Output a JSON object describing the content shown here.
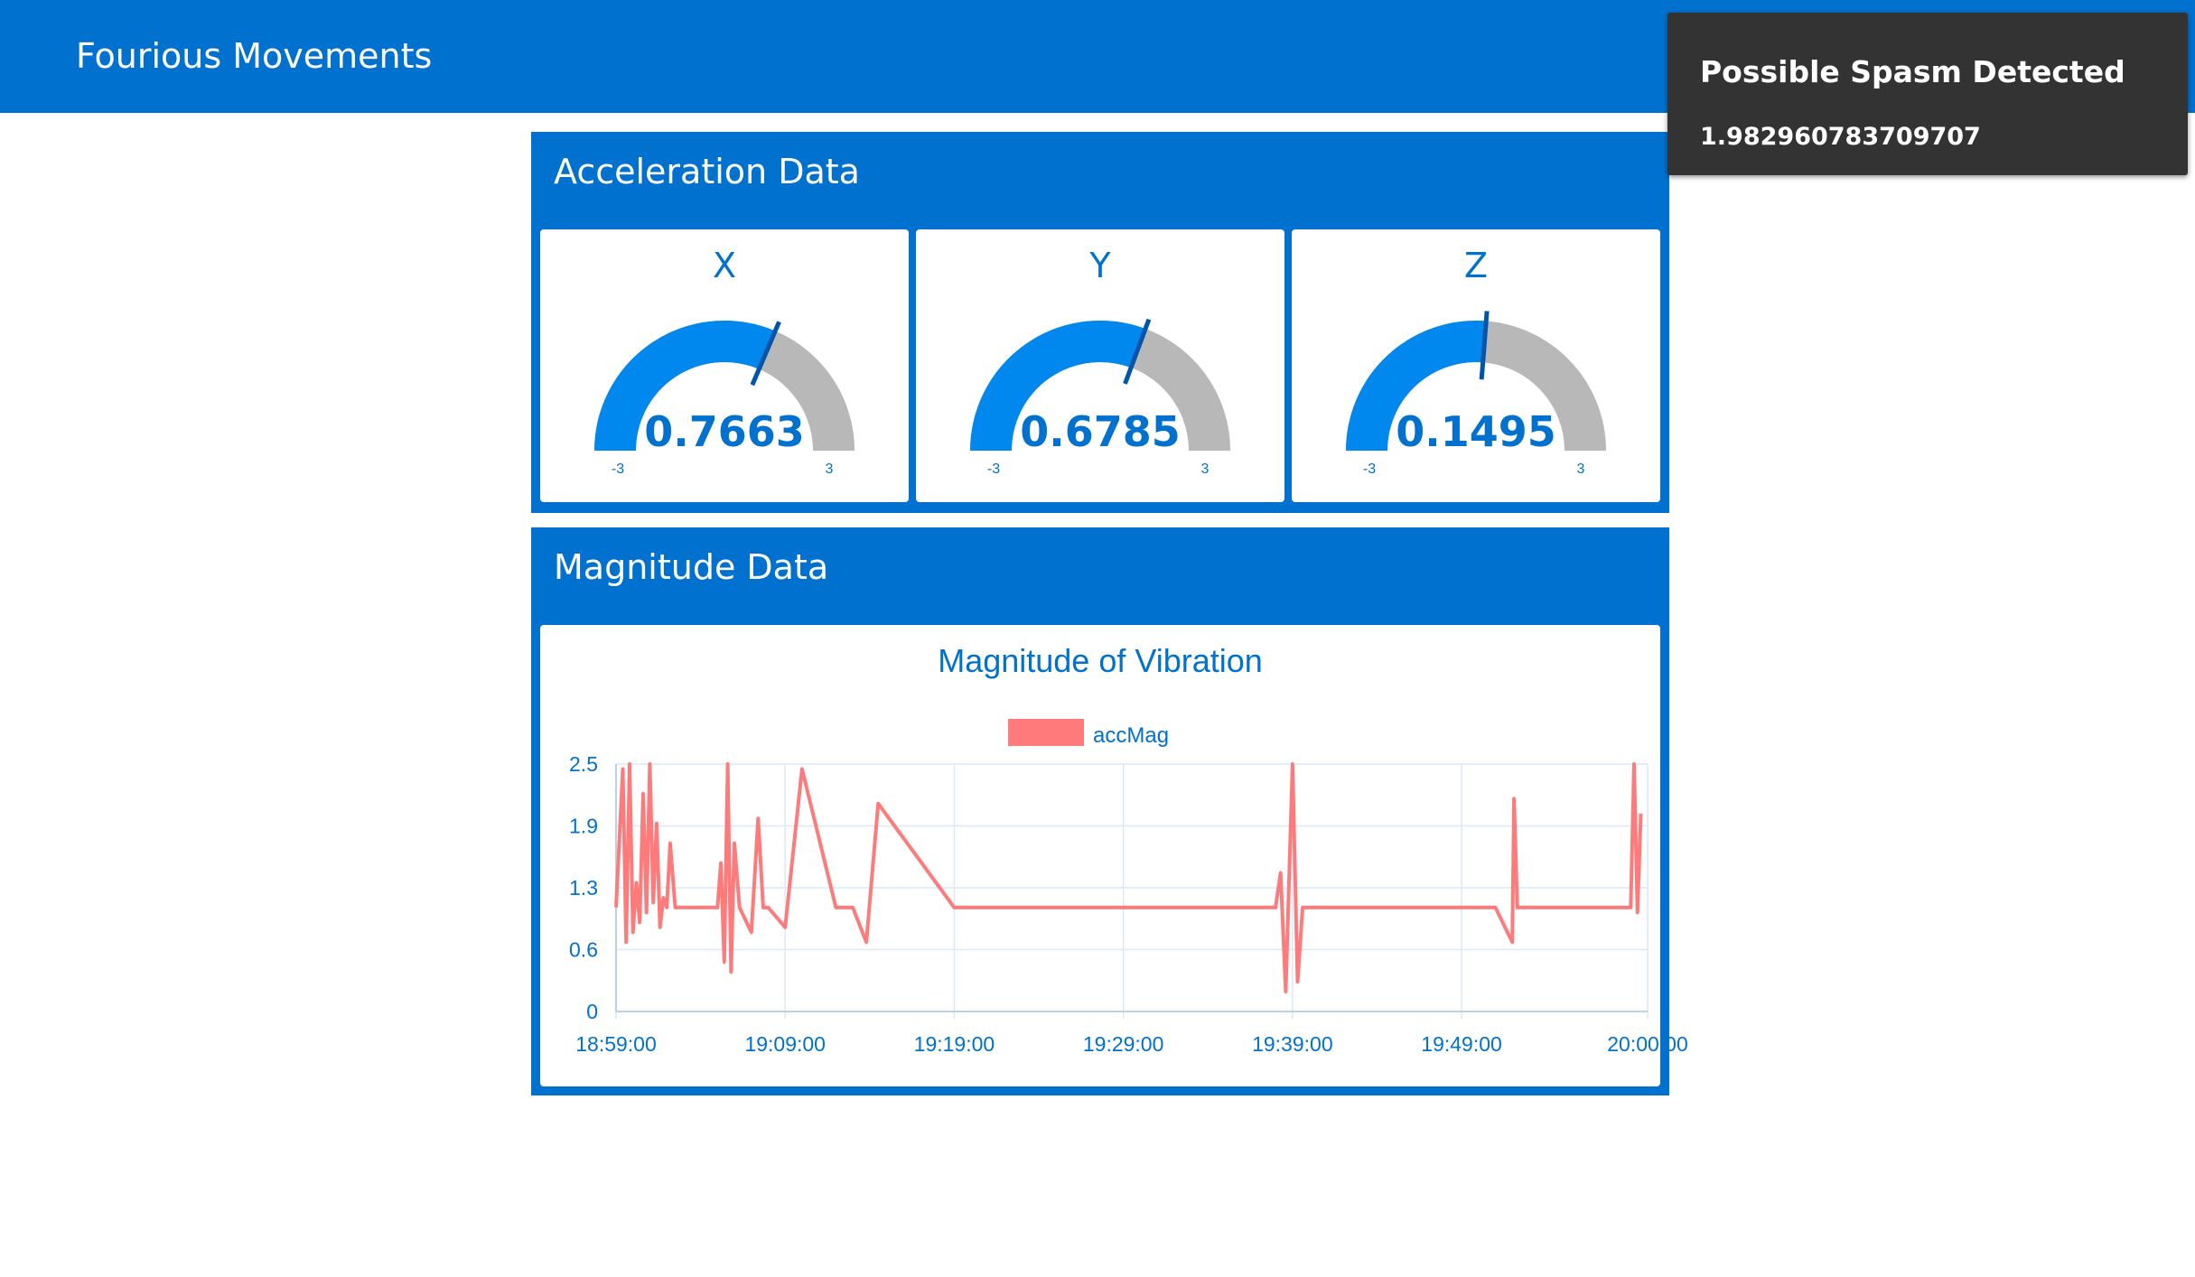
{
  "header": {
    "title": "Fourious Movements"
  },
  "colors": {
    "brand": "#0071ce",
    "gauge_fill": "#0088ee",
    "gauge_track": "#b8b8b8",
    "series": "#ff7b7b",
    "grid": "#dce9f5"
  },
  "acceleration": {
    "title": "Acceleration Data",
    "gauges": [
      {
        "label": "X",
        "value": "0.7663",
        "numeric": 0.7663,
        "min": -3,
        "max": 3,
        "min_label": "-3",
        "max_label": "3"
      },
      {
        "label": "Y",
        "value": "0.6785",
        "numeric": 0.6785,
        "min": -3,
        "max": 3,
        "min_label": "-3",
        "max_label": "3"
      },
      {
        "label": "Z",
        "value": "0.1495",
        "numeric": 0.1495,
        "min": -3,
        "max": 3,
        "min_label": "-3",
        "max_label": "3"
      }
    ]
  },
  "magnitude": {
    "title": "Magnitude Data"
  },
  "chart_data": {
    "type": "line",
    "title": "Magnitude of Vibration",
    "xlabel": "",
    "ylabel": "",
    "legend_position": "top",
    "grid": true,
    "ylim": [
      0,
      2.5
    ],
    "y_ticks": [
      "0",
      "0.6",
      "1.3",
      "1.9",
      "2.5"
    ],
    "y_tick_values": [
      0,
      0.625,
      1.25,
      1.875,
      2.5
    ],
    "x_ticks": [
      "18:59:00",
      "19:09:00",
      "19:19:00",
      "19:29:00",
      "19:39:00",
      "19:49:00",
      "20:00:00"
    ],
    "series": [
      {
        "name": "accMag",
        "x_minutes_after_18_59": [
          0,
          0.4,
          0.6,
          0.8,
          1.0,
          1.2,
          1.4,
          1.6,
          1.8,
          2.0,
          2.2,
          2.4,
          2.6,
          2.8,
          3.0,
          3.2,
          3.5,
          6.0,
          6.2,
          6.4,
          6.6,
          6.8,
          7.0,
          7.3,
          8.0,
          8.4,
          8.7,
          9.0,
          10.0,
          11.0,
          13.0,
          14.0,
          14.8,
          15.5,
          20.0,
          25.0,
          30.0,
          39.0,
          39.3,
          39.6,
          40.0,
          40.3,
          40.6,
          45.0,
          52.0,
          53.0,
          53.1,
          53.3,
          58.0,
          60.0,
          60.2,
          60.4,
          60.6
        ],
        "values": [
          1.05,
          2.45,
          0.7,
          2.5,
          0.8,
          1.3,
          0.9,
          2.2,
          1.0,
          2.5,
          1.1,
          1.9,
          0.85,
          1.15,
          1.05,
          1.7,
          1.05,
          1.05,
          1.5,
          0.5,
          2.5,
          0.4,
          1.7,
          1.05,
          0.8,
          1.95,
          1.05,
          1.05,
          0.85,
          2.45,
          1.05,
          1.05,
          0.7,
          2.1,
          1.05,
          1.05,
          1.05,
          1.05,
          1.4,
          0.2,
          2.5,
          0.3,
          1.05,
          1.05,
          1.05,
          0.7,
          2.15,
          1.05,
          1.05,
          1.05,
          2.5,
          1.0,
          2.0
        ]
      }
    ]
  },
  "toast": {
    "title": "Possible Spasm Detected",
    "value": "1.982960783709707"
  }
}
